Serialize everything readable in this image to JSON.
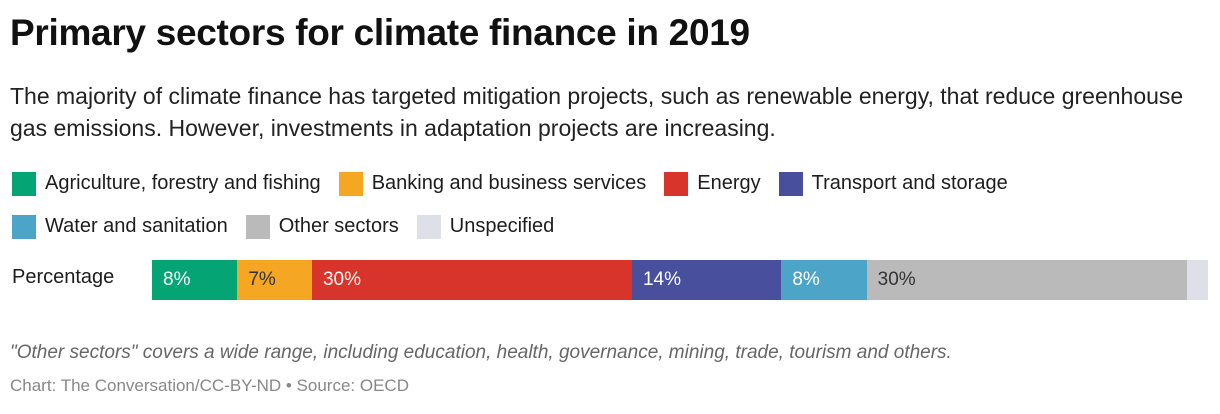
{
  "chart_data": {
    "type": "bar",
    "orientation": "horizontal-stacked",
    "title": "Primary sectors for climate finance in 2019",
    "subtitle": "The majority of climate finance has targeted mitigation projects, such as renewable energy, that reduce greenhouse gas emissions. However, investments in adaptation projects are increasing.",
    "categories": [
      "Percentage"
    ],
    "xlim": [
      0,
      100
    ],
    "legend_position": "top-left",
    "series": [
      {
        "name": "Agriculture, forestry and fishing",
        "values": [
          8
        ],
        "label": "8%",
        "color": "#05A475",
        "label_color": "#ffffff"
      },
      {
        "name": "Banking and business services",
        "values": [
          7
        ],
        "label": "7%",
        "color": "#F5A623",
        "label_color": "#333333"
      },
      {
        "name": "Energy",
        "values": [
          30
        ],
        "label": "30%",
        "color": "#D9342B",
        "label_color": "#ffffff"
      },
      {
        "name": "Transport and storage",
        "values": [
          14
        ],
        "label": "14%",
        "color": "#48509E",
        "label_color": "#ffffff"
      },
      {
        "name": "Water and sanitation",
        "values": [
          8
        ],
        "label": "8%",
        "color": "#4CA5C8",
        "label_color": "#ffffff"
      },
      {
        "name": "Other sectors",
        "values": [
          30
        ],
        "label": "30%",
        "color": "#BABABA",
        "label_color": "#333333"
      },
      {
        "name": "Unspecified",
        "values": [
          2
        ],
        "label": "",
        "color": "#DEDFE8",
        "label_color": "#333333"
      }
    ],
    "note": "\"Other sectors\" covers a wide range, including education, health, governance, mining, trade, tourism and others.",
    "source": "Chart: The Conversation/CC-BY-ND • Source: OECD"
  }
}
